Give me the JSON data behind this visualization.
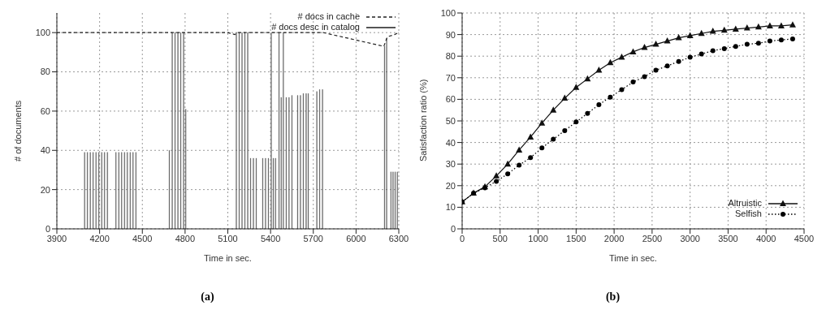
{
  "chart_data": [
    {
      "type": "bar",
      "xlabel": "Time in sec.",
      "ylabel": "# of documents",
      "annotations": [
        "(a)"
      ],
      "xlim": [
        3900,
        6300
      ],
      "ylim": [
        0,
        110
      ],
      "xticks": [
        3900,
        4200,
        4500,
        4800,
        5100,
        5400,
        5700,
        6000,
        6300
      ],
      "yticks": [
        0,
        20,
        40,
        60,
        80,
        100
      ],
      "grid": true,
      "legend": "top right",
      "series": [
        {
          "name": "# docs in cache",
          "type": "line",
          "color": "#222222",
          "line_style": "dashed",
          "marker": "none",
          "x": [
            3900,
            5100,
            5150,
            5165,
            5770,
            6195,
            6215,
            6225,
            6270,
            6300
          ],
          "values": [
            100,
            100,
            99,
            100,
            100,
            93,
            97,
            98,
            99,
            100
          ]
        },
        {
          "name": "# docs desc in catalog",
          "type": "bar",
          "color": "#555555",
          "x": [
            4095,
            4115,
            4135,
            4155,
            4175,
            4195,
            4215,
            4235,
            4255,
            4315,
            4335,
            4355,
            4375,
            4395,
            4415,
            4435,
            4455,
            4690,
            4710,
            4730,
            4750,
            4770,
            4790,
            4805,
            5160,
            5180,
            5200,
            5220,
            5240,
            5260,
            5280,
            5300,
            5345,
            5365,
            5385,
            5405,
            5420,
            5435,
            5460,
            5475,
            5490,
            5510,
            5530,
            5550,
            5590,
            5610,
            5630,
            5650,
            5665,
            5725,
            5745,
            5765,
            6200,
            6215,
            6245,
            6260,
            6275,
            6290
          ],
          "values": [
            39,
            39,
            39,
            39,
            39,
            39,
            39,
            39,
            39,
            39,
            39,
            39,
            39,
            39,
            39,
            39,
            39,
            40,
            100,
            100,
            100,
            100,
            100,
            61,
            100,
            100,
            100,
            100,
            100,
            36,
            36,
            36,
            36,
            36,
            36,
            100,
            36,
            36,
            100,
            67,
            100,
            67,
            67,
            68,
            68,
            68,
            69,
            69,
            69,
            70,
            71,
            71,
            93,
            97,
            29,
            29,
            29,
            29
          ]
        }
      ]
    },
    {
      "type": "line",
      "xlabel": "Time in sec.",
      "ylabel": "Satisfaction ratio (%)",
      "annotations": [
        "(b)"
      ],
      "xlim": [
        0,
        4500
      ],
      "ylim": [
        0,
        100
      ],
      "xticks": [
        0,
        500,
        1000,
        1500,
        2000,
        2500,
        3000,
        3500,
        4000,
        4500
      ],
      "yticks": [
        0,
        10,
        20,
        30,
        40,
        50,
        60,
        70,
        80,
        90,
        100
      ],
      "grid": true,
      "legend": "bottom right",
      "x": [
        0,
        150,
        300,
        450,
        600,
        750,
        900,
        1050,
        1200,
        1350,
        1500,
        1650,
        1800,
        1950,
        2100,
        2250,
        2400,
        2550,
        2700,
        2850,
        3000,
        3150,
        3300,
        3450,
        3600,
        3750,
        3900,
        4050,
        4200,
        4350
      ],
      "series": [
        {
          "name": "Altruistic",
          "color": "#111111",
          "line_style": "solid",
          "marker": "triangle",
          "values": [
            12.5,
            16.5,
            19.5,
            24.5,
            30,
            36.5,
            42.5,
            49,
            55,
            60.5,
            65.5,
            69.5,
            73.5,
            77,
            79.5,
            82,
            84,
            85.5,
            87,
            88.5,
            89.5,
            90.5,
            91.5,
            92,
            92.5,
            93,
            93.5,
            94,
            94,
            94.5
          ]
        },
        {
          "name": "Selfish",
          "color": "#000000",
          "line_style": "dotted",
          "marker": "circle",
          "values": [
            12.5,
            16.5,
            19,
            22,
            25.5,
            29.5,
            33,
            37.5,
            41.5,
            45.5,
            49.5,
            53.5,
            57.5,
            61,
            64.5,
            68,
            70.5,
            73.5,
            75.5,
            77.5,
            79.5,
            81,
            82.5,
            83.5,
            84.5,
            85.5,
            86,
            87,
            87.5,
            88
          ]
        }
      ]
    }
  ]
}
